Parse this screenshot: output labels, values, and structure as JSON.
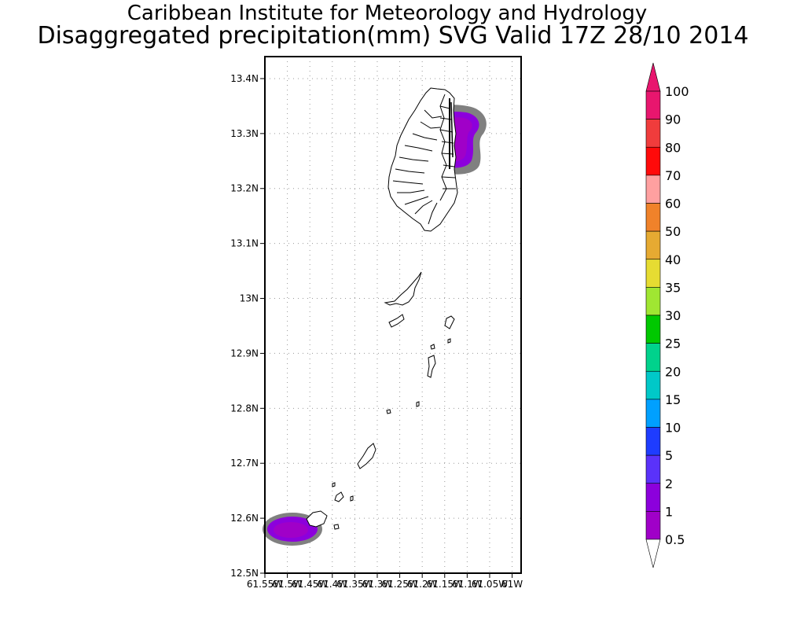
{
  "header": {
    "line1": "Caribbean Institute for Meteorology and Hydrology",
    "line2": "Disaggregated precipitation(mm) SVG Valid 17Z 28/10 2014"
  },
  "map": {
    "lat_ticks": [
      "13.4N",
      "13.3N",
      "13.2N",
      "13.1N",
      "13N",
      "12.9N",
      "12.8N",
      "12.7N",
      "12.6N",
      "12.5N"
    ],
    "lon_ticks": [
      "61.55W",
      "61.5W",
      "61.45W",
      "61.4W",
      "61.35W",
      "61.3W",
      "61.25W",
      "61.2W",
      "61.15W",
      "61.1W",
      "61.05W",
      "61W"
    ],
    "lat_range": [
      12.5,
      13.44
    ],
    "lon_range": [
      -61.55,
      -60.98
    ],
    "grid": true
  },
  "colorbar": {
    "levels": [
      {
        "label": "100",
        "color": "#e8166e"
      },
      {
        "label": "90",
        "color": "#f03c3c"
      },
      {
        "label": "80",
        "color": "#ff0a0a"
      },
      {
        "label": "70",
        "color": "#ffa0a0"
      },
      {
        "label": "60",
        "color": "#f0822a"
      },
      {
        "label": "50",
        "color": "#e6aa32"
      },
      {
        "label": "40",
        "color": "#e6dc32"
      },
      {
        "label": "35",
        "color": "#a0e632"
      },
      {
        "label": "30",
        "color": "#00c800"
      },
      {
        "label": "25",
        "color": "#00d28c"
      },
      {
        "label": "20",
        "color": "#00c8c8"
      },
      {
        "label": "15",
        "color": "#00a0ff"
      },
      {
        "label": "10",
        "color": "#1e3cff"
      },
      {
        "label": "5",
        "color": "#5a32fa"
      },
      {
        "label": "2",
        "color": "#8c00dc"
      },
      {
        "label": "1",
        "color": "#a000c8"
      },
      {
        "label": "0.5",
        "color": "#808080"
      }
    ],
    "colors": {
      "top_arrow": "#e8166e",
      "bottom_arrow": "#ffffff"
    }
  }
}
